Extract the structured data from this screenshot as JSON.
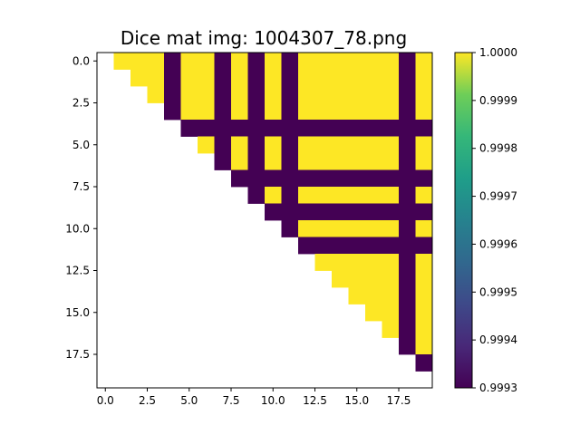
{
  "chart_data": {
    "type": "heatmap",
    "title": "Dice mat img: 1004307_78.png",
    "size": 20,
    "colormap": "viridis",
    "colors": {
      "high": "#fde725",
      "low": "#440154",
      "blank": "#ffffff"
    },
    "value_range": [
      0.9993,
      1.0
    ],
    "x_ticks": [
      0,
      2.5,
      5,
      7.5,
      10,
      12.5,
      15,
      17.5
    ],
    "x_tick_labels": [
      "0.0",
      "2.5",
      "5.0",
      "7.5",
      "10.0",
      "12.5",
      "15.0",
      "17.5"
    ],
    "y_ticks": [
      0,
      2.5,
      5,
      7.5,
      10,
      12.5,
      15,
      17.5
    ],
    "y_tick_labels": [
      "0.0",
      "2.5",
      "5.0",
      "7.5",
      "10.0",
      "12.5",
      "15.0",
      "17.5"
    ],
    "colorbar_ticks": [
      1.0,
      0.9999,
      0.9998,
      0.9997,
      0.9996,
      0.9995,
      0.9994,
      0.9993
    ],
    "colorbar_tick_labels": [
      "1.0000",
      "0.9999",
      "0.9998",
      "0.9997",
      "0.9996",
      "0.9995",
      "0.9994",
      "0.9993"
    ],
    "low_value_columns": [
      4,
      7,
      9,
      11,
      18
    ],
    "low_value_rows": [
      4,
      7,
      9,
      11,
      18
    ],
    "description_of_cells": "upper triangle (j > i); cell is low (0.9993) when row or column index is in the low set, otherwise high (1.0)"
  }
}
